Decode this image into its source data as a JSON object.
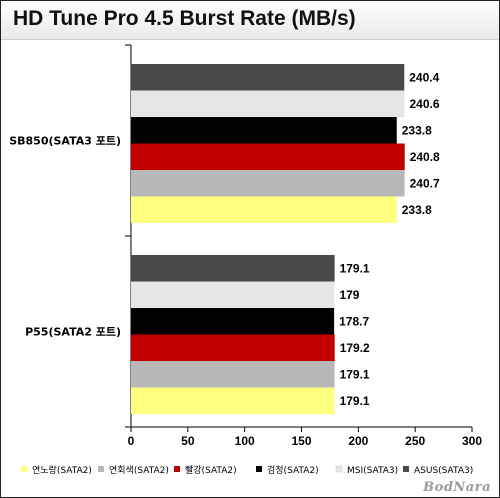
{
  "chart_data": {
    "type": "bar",
    "orientation": "horizontal",
    "title": "HD Tune Pro 4.5 Burst Rate (MB/s)",
    "categories": [
      "SB850(SATA3 포트)",
      "P55(SATA2 포트)"
    ],
    "series": [
      {
        "name": "연노랑(SATA2)",
        "color": "#ffff80",
        "values": [
          233.8,
          179.1
        ]
      },
      {
        "name": "연회색(SATA2)",
        "color": "#b8b8b8",
        "values": [
          240.7,
          179.1
        ]
      },
      {
        "name": "빨강(SATA2)",
        "color": "#c00000",
        "values": [
          240.8,
          179.2
        ]
      },
      {
        "name": "검정(SATA2)",
        "color": "#000000",
        "values": [
          233.8,
          178.7
        ]
      },
      {
        "name": "MSI(SATA3)",
        "color": "#e6e6e6",
        "values": [
          240.6,
          179
        ]
      },
      {
        "name": "ASUS(SATA3)",
        "color": "#4a4a4a",
        "values": [
          240.4,
          179.1
        ]
      }
    ],
    "value_labels": [
      [
        "233.8",
        "240.7",
        "240.8",
        "233.8",
        "240.6",
        "240.4"
      ],
      [
        "179.1",
        "179.1",
        "179.2",
        "178.7",
        "179",
        "179.1"
      ]
    ],
    "xlim": [
      0,
      300
    ],
    "xticks": [
      0,
      50,
      100,
      150,
      200,
      250,
      300
    ],
    "xtick_labels": [
      "0",
      "50",
      "100",
      "150",
      "200",
      "250",
      "300"
    ],
    "grid": false,
    "legend_position": "bottom"
  },
  "watermark": "BodNara"
}
